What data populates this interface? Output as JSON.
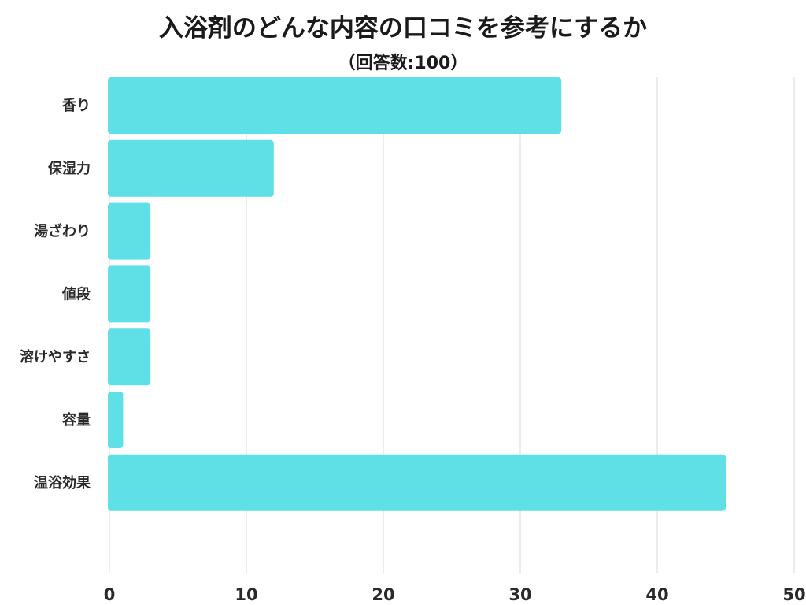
{
  "chart_data": {
    "type": "bar",
    "orientation": "horizontal",
    "title": "入浴剤のどんな内容の口コミを参考にするか",
    "subtitle": "（回答数:100）",
    "categories": [
      "香り",
      "保湿力",
      "湯ざわり",
      "値段",
      "溶けやすさ",
      "容量",
      "温浴効果"
    ],
    "values": [
      33,
      12,
      3,
      3,
      3,
      1,
      45
    ],
    "xlim": [
      0,
      50
    ],
    "xticks": [
      "0",
      "10",
      "20",
      "30",
      "40",
      "50"
    ],
    "grid": true,
    "bar_color": "#5ee0e6"
  }
}
